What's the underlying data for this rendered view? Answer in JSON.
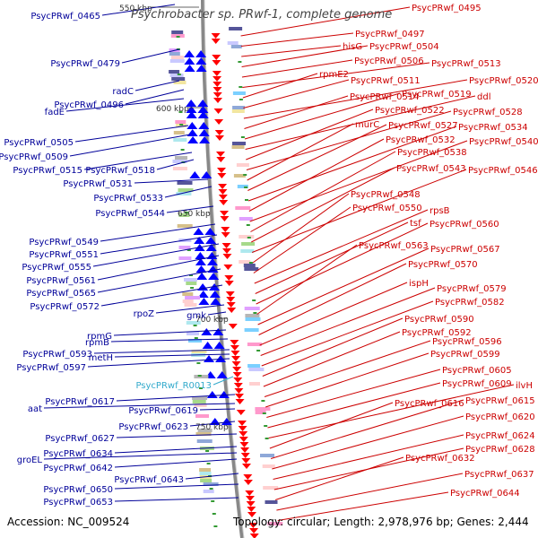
{
  "header": {
    "title": "Psychrobacter sp. PRwf-1, complete genome"
  },
  "footer": {
    "accession": "Accession: NC_009524",
    "summary": "Topology: circular; Length: 2,978,976 bp; Genes: 2,444"
  },
  "colors": {
    "forward_label": "#cc0000",
    "reverse_label": "#000099",
    "rna_label": "#33aacc",
    "backbone": "#888888",
    "forward_arrow": "#ff0000",
    "reverse_arrow": "#0000ff"
  },
  "ticks": [
    {
      "label": "550 kbp"
    },
    {
      "label": "600 kbp"
    },
    {
      "label": "650 kbp"
    },
    {
      "label": "700 kbp"
    },
    {
      "label": "750 kbp"
    }
  ],
  "left_labels": [
    "PsycPRwf_0465",
    "PsycPRwf_0479",
    "radC",
    "PsycPRwf_0496",
    "fadE",
    "PsycPRwf_0505",
    "PsycPRwf_0509",
    "PsycPRwf_0515",
    "PsycPRwf_0518",
    "PsycPRwf_0531",
    "PsycPRwf_0533",
    "PsycPRwf_0544",
    "PsycPRwf_0549",
    "PsycPRwf_0551",
    "PsycPRwf_0555",
    "PsycPRwf_0561",
    "PsycPRwf_0565",
    "PsycPRwf_0572",
    "rpoZ",
    "gmk",
    "rpmG",
    "rpmB",
    "PsycPRwf_0593",
    "metH",
    "PsycPRwf_0597",
    "PsycPRwf_R0013",
    "PsycPRwf_0617",
    "aat",
    "PsycPRwf_0619",
    "PsycPRwf_0623",
    "PsycPRwf_0627",
    "PsycPRwf_0634",
    "groEL",
    "PsycPRwf_0642",
    "PsycPRwf_0643",
    "PsycPRwf_0650",
    "PsycPRwf_0653"
  ],
  "right_labels": [
    "PsycPRwf_0495",
    "PsycPRwf_0497",
    "hisG",
    "PsycPRwf_0504",
    "PsycPRwf_0506",
    "PsycPRwf_0513",
    "rpmE2",
    "PsycPRwf_0511",
    "PsycPRwf_0520",
    "PsycPRwf_0514",
    "PsycPRwf_0519",
    "ddl",
    "PsycPRwf_0522",
    "PsycPRwf_0528",
    "murC",
    "PsycPRwf_0527",
    "PsycPRwf_0534",
    "PsycPRwf_0532",
    "PsycPRwf_0540",
    "PsycPRwf_0538",
    "PsycPRwf_0543",
    "PsycPRwf_0546",
    "PsycPRwf_0548",
    "PsycPRwf_0550",
    "rpsB",
    "tsf",
    "PsycPRwf_0560",
    "PsycPRwf_0563",
    "PsycPRwf_0567",
    "PsycPRwf_0570",
    "ispH",
    "PsycPRwf_0579",
    "PsycPRwf_0582",
    "PsycPRwf_0590",
    "PsycPRwf_0592",
    "PsycPRwf_0596",
    "PsycPRwf_0599",
    "PsycPRwf_0605",
    "PsycPRwf_0609",
    "ilvH",
    "PsycPRwf_0616",
    "PsycPRwf_0615",
    "PsycPRwf_0620",
    "PsycPRwf_0624",
    "PsycPRwf_0628",
    "PsycPRwf_0632",
    "PsycPRwf_0637",
    "PsycPRwf_0644"
  ]
}
